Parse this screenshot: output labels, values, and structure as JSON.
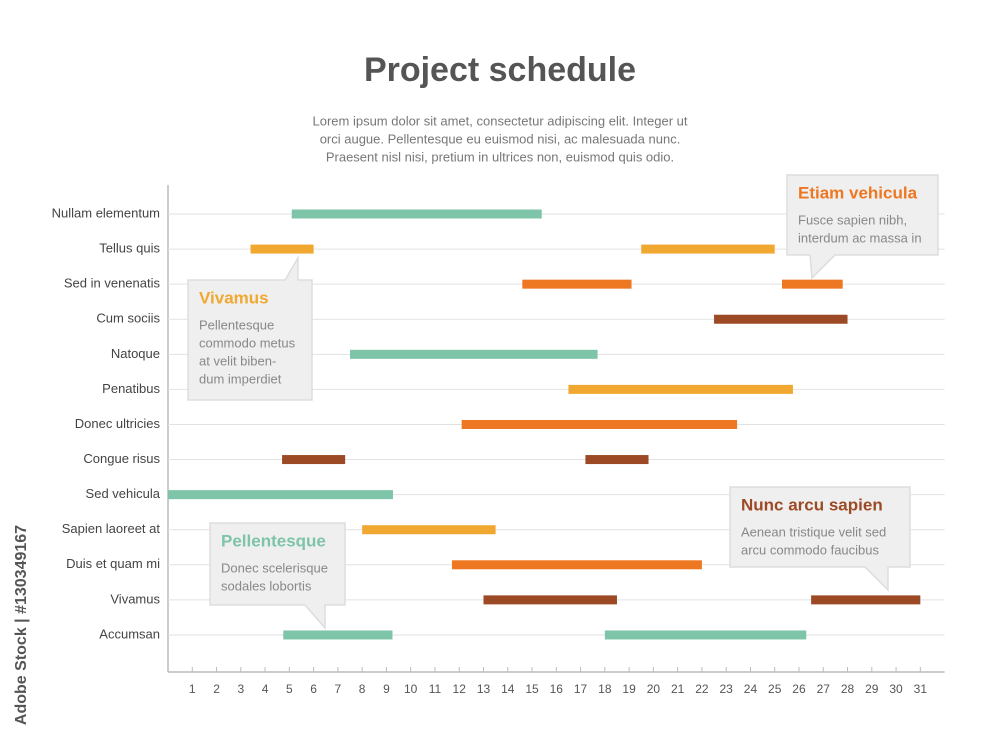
{
  "chart_data": {
    "type": "gantt",
    "title": "Project schedule",
    "subtitle": [
      "Lorem ipsum dolor sit amet, consectetur adipiscing elit. Integer ut",
      "orci augue. Pellentesque eu euismod nisi, ac malesuada nunc.",
      "Praesent nisl nisi, pretium in ultrices non, euismod quis odio."
    ],
    "xlim": [
      0,
      32
    ],
    "xticks": [
      1,
      2,
      3,
      4,
      5,
      6,
      7,
      8,
      9,
      10,
      11,
      12,
      13,
      14,
      15,
      16,
      17,
      18,
      19,
      20,
      21,
      22,
      23,
      24,
      25,
      26,
      27,
      28,
      29,
      30,
      31
    ],
    "grid": true,
    "rows": [
      {
        "name": "Nullam elementum",
        "color": "#7dc4a8",
        "bars": [
          [
            5.1,
            15.4
          ]
        ]
      },
      {
        "name": "Tellus quis",
        "color": "#f0a830",
        "bars": [
          [
            3.4,
            6.0
          ],
          [
            19.5,
            25.0
          ]
        ]
      },
      {
        "name": "Sed in venenatis",
        "color": "#ee7722",
        "bars": [
          [
            14.6,
            19.1
          ],
          [
            25.3,
            27.8
          ]
        ]
      },
      {
        "name": "Cum sociis",
        "color": "#9c4a25",
        "bars": [
          [
            22.5,
            28.0
          ]
        ]
      },
      {
        "name": "Natoque",
        "color": "#7dc4a8",
        "bars": [
          [
            7.5,
            17.7
          ]
        ]
      },
      {
        "name": "Penatibus",
        "color": "#f0a830",
        "bars": [
          [
            16.5,
            25.75
          ]
        ]
      },
      {
        "name": "Donec ultricies",
        "color": "#ee7722",
        "bars": [
          [
            12.1,
            23.45
          ]
        ]
      },
      {
        "name": "Congue risus",
        "color": "#9c4a25",
        "bars": [
          [
            4.7,
            7.3
          ],
          [
            17.2,
            19.8
          ]
        ]
      },
      {
        "name": "Sed vehicula",
        "color": "#7dc4a8",
        "bars": [
          [
            0,
            9.27
          ]
        ]
      },
      {
        "name": "Sapien laoreet at",
        "color": "#f0a830",
        "bars": [
          [
            8.0,
            13.5
          ]
        ]
      },
      {
        "name": "Duis et quam mi",
        "color": "#ee7722",
        "bars": [
          [
            11.7,
            22.0
          ]
        ]
      },
      {
        "name": "Vivamus",
        "color": "#9c4a25",
        "bars": [
          [
            13.0,
            18.5
          ],
          [
            26.5,
            31.0
          ]
        ]
      },
      {
        "name": "Accumsan",
        "color": "#7dc4a8",
        "bars": [
          [
            4.75,
            9.25
          ],
          [
            18.0,
            26.3
          ]
        ]
      }
    ],
    "annotations": [
      {
        "title": "Etiam vehicula",
        "color": "#ee7722",
        "lines": [
          "Fusce sapien nibh,",
          "interdum ac massa in"
        ]
      },
      {
        "title": "Vivamus",
        "color": "#f0a830",
        "lines": [
          "Pellentesque",
          "commodo metus",
          "at velit biben-",
          "dum imperdiet"
        ]
      },
      {
        "title": "Nunc arcu sapien",
        "color": "#9c4a25",
        "lines": [
          "Aenean tristique velit sed",
          "arcu commodo faucibus"
        ]
      },
      {
        "title": "Pellentesque",
        "color": "#7dc4a8",
        "lines": [
          "Donec scelerisque",
          "sodales lobortis"
        ]
      }
    ],
    "credit": "Adobe Stock | #130349167"
  }
}
